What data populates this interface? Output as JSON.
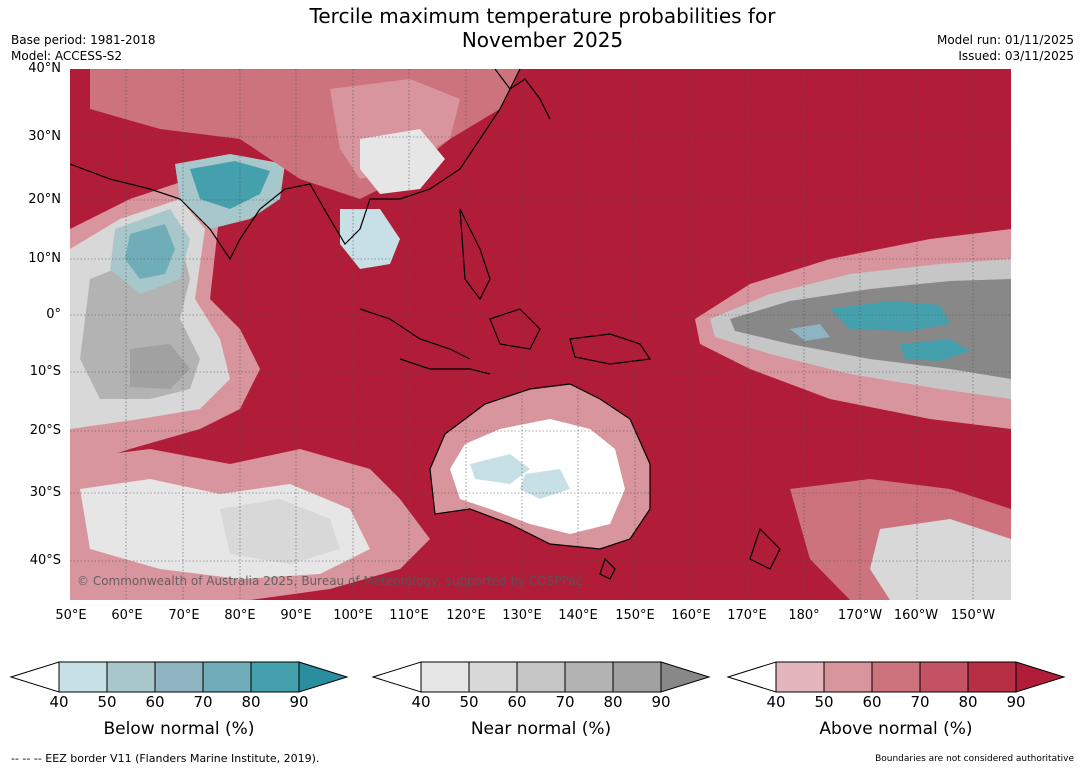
{
  "title_line1": "Tercile maximum temperature probabilities for",
  "title_line2": "November 2025",
  "meta_left": [
    "Base period: 1981-2018",
    "Model: ACCESS-S2"
  ],
  "meta_right": [
    "Model run: 01/11/2025",
    "Issued: 03/11/2025"
  ],
  "lat_labels": [
    "40°N",
    "30°N",
    "20°N",
    "10°N",
    "0°",
    "10°S",
    "20°S",
    "30°S",
    "40°S"
  ],
  "lon_labels": [
    "50°E",
    "60°E",
    "70°E",
    "80°E",
    "90°E",
    "100°E",
    "110°E",
    "120°E",
    "130°E",
    "140°E",
    "150°E",
    "160°E",
    "170°E",
    "180°",
    "170°W",
    "160°W",
    "150°W"
  ],
  "copyright": "© Commonwealth of Australia 2025, Bureau of Meteorology, supported by COSPPac",
  "colorbars": [
    {
      "label": "Below normal (%)",
      "ticks": [
        "40",
        "50",
        "60",
        "70",
        "80",
        "90"
      ],
      "colors": [
        "#ffffff",
        "#c6e0e6",
        "#a7c7cb",
        "#8fb4c1",
        "#6fadb8",
        "#45a0ae",
        "#2a8e9e"
      ]
    },
    {
      "label": "Near normal (%)",
      "ticks": [
        "40",
        "50",
        "60",
        "70",
        "80",
        "90"
      ],
      "colors": [
        "#ffffff",
        "#e6e6e6",
        "#d8d8d8",
        "#c6c6c6",
        "#b3b3b3",
        "#a1a1a1",
        "#888888"
      ]
    },
    {
      "label": "Above normal (%)",
      "ticks": [
        "40",
        "50",
        "60",
        "70",
        "80",
        "90"
      ],
      "colors": [
        "#ffffff",
        "#e3b6bd",
        "#d9959d",
        "#cc737e",
        "#c35363",
        "#b62f45",
        "#b11c38"
      ]
    }
  ],
  "footer_left": "--  --  -- EEZ border V11 (Flanders Marine Institute, 2019).",
  "footer_right": "Boundaries are not considered authoritative"
}
